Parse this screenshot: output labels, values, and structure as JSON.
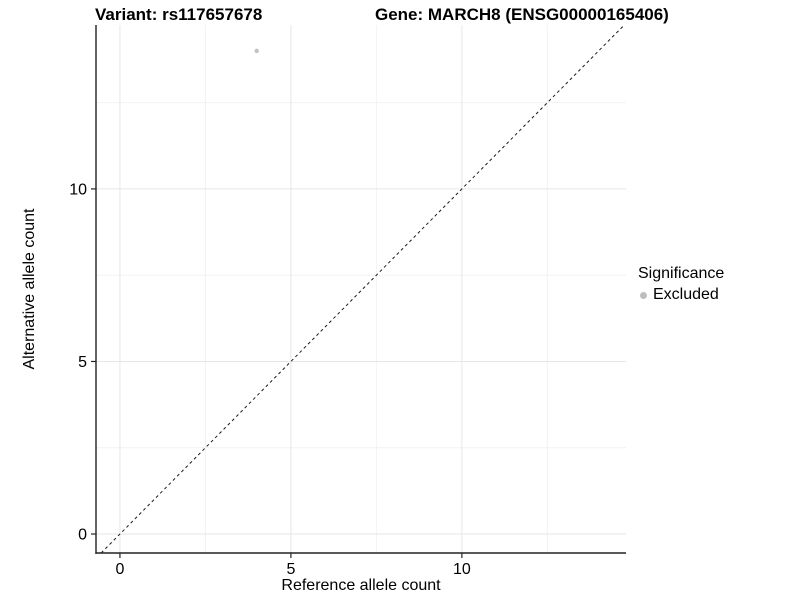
{
  "chart_data": {
    "type": "scatter",
    "title_left": "Variant: rs117657678",
    "title_right": "Gene: MARCH8 (ENSG00000165406)",
    "xlabel": "Reference allele count",
    "ylabel": "Alternative allele count",
    "xlim": [
      -0.7,
      14.8
    ],
    "ylim": [
      -0.55,
      14.75
    ],
    "x_major_ticks": [
      0,
      5,
      10
    ],
    "y_major_ticks": [
      0,
      5,
      10
    ],
    "x_minor_gridlines": [
      2.5,
      7.5,
      12.5
    ],
    "y_minor_gridlines": [
      2.5,
      7.5,
      12.5
    ],
    "grid": "major+minor",
    "legend": {
      "title": "Significance",
      "position": "right",
      "items": [
        {
          "label": "Excluded",
          "color": "#bebebe"
        }
      ]
    },
    "series": [
      {
        "name": "Excluded",
        "color": "#c2c2c2",
        "marker": "circle",
        "points": [
          [
            4,
            14
          ]
        ]
      }
    ],
    "reference_line": {
      "kind": "identity",
      "slope": 1,
      "intercept": 0,
      "style": "dashed",
      "color": "#1a1a1a"
    },
    "colors": {
      "background": "#ffffff",
      "axis": "#222222",
      "gridline_major": "#e6e6e6",
      "gridline_minor": "#f2f2f2",
      "text": "#000000"
    }
  }
}
